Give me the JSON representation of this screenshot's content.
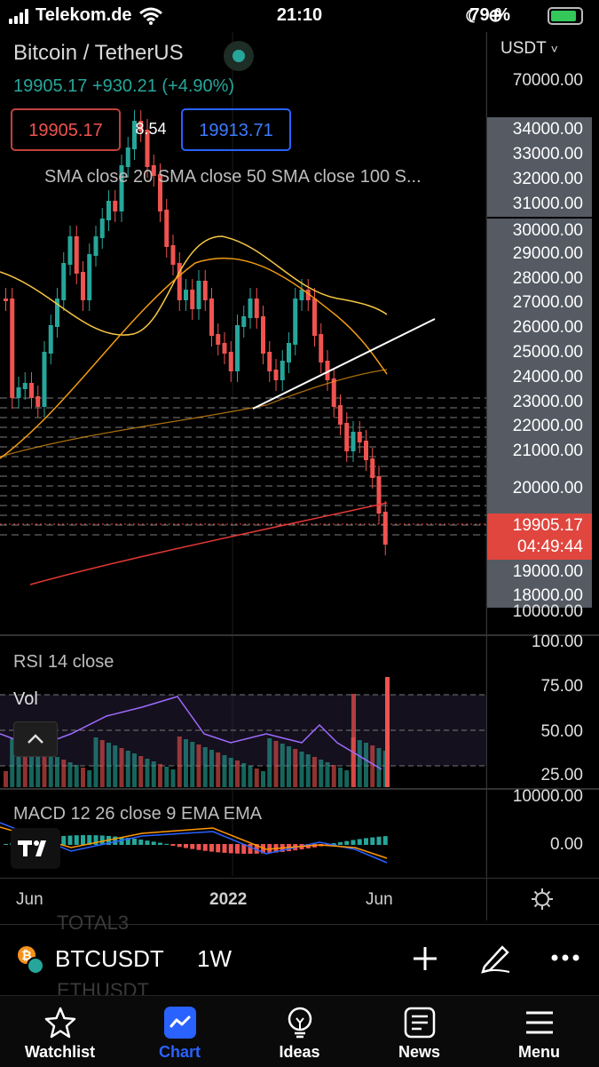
{
  "status_bar": {
    "carrier": "Telekom.de",
    "time": "21:10",
    "battery_percent": "79 %"
  },
  "header": {
    "pair": "Bitcoin / TetherUS",
    "price_line": "19905.17 +930.21 (+4.90%)",
    "sell_price": "19905.17",
    "spread": "8.54",
    "buy_price": "19913.71",
    "indicators": "SMA close 20 SMA close 50 SMA close 100 S..."
  },
  "price_axis": {
    "currency": "USDT",
    "top_label": "70000.00",
    "boxed_labels": [
      "34000.00",
      "33000.00",
      "32000.00",
      "31000.00",
      "30000.00",
      "29000.00",
      "28000.00",
      "27000.00",
      "26000.00",
      "25000.00",
      "24000.00",
      "23000.00",
      "22000.00",
      "21000.00",
      "20000.00"
    ],
    "current_price": "19905.17",
    "countdown": "04:49:44",
    "lower_boxed": [
      "19000.00",
      "18000.00"
    ],
    "bottom_label": "10000.00"
  },
  "rsi_panel": {
    "label": "RSI 14 close",
    "vol_label": "Vol",
    "axis": [
      "100.00",
      "75.00",
      "50.00",
      "25.00"
    ]
  },
  "macd_panel": {
    "label": "MACD 12 26 close 9 EMA EMA",
    "axis": [
      "10000.00",
      "0.00"
    ]
  },
  "time_axis": {
    "labels": [
      "Jun",
      "2022",
      "Jun"
    ]
  },
  "symbol_bar": {
    "ghost_top": "TOTAL3",
    "symbol": "BTCUSDT",
    "timeframe": "1W",
    "ghost_bottom": "ETHUSDT"
  },
  "tabs": [
    {
      "label": "Watchlist",
      "icon": "star-icon"
    },
    {
      "label": "Chart",
      "icon": "chart-icon",
      "active": true
    },
    {
      "label": "Ideas",
      "icon": "lightbulb-icon"
    },
    {
      "label": "News",
      "icon": "news-icon"
    },
    {
      "label": "Menu",
      "icon": "menu-icon"
    }
  ],
  "colors": {
    "up": "#26a69a",
    "down": "#ef5350",
    "accent": "#2962ff",
    "sma20": "#f7c744",
    "sma50": "#f39c12",
    "sma100": "#e53935"
  }
}
